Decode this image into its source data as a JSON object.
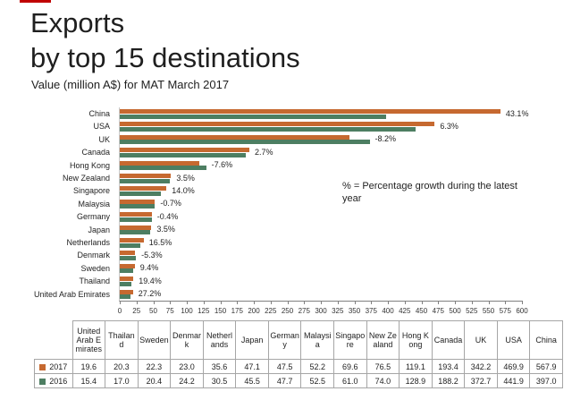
{
  "header": {
    "title_line1": "Exports",
    "title_line2": "by top 15 destinations",
    "subtitle": "Value (million A$) for MAT March 2017"
  },
  "annotation": "% = Percentage growth during the latest year",
  "colors": {
    "bar_2017": "#C66930",
    "bar_2016": "#4D7E62",
    "red_dash": "#C00000"
  },
  "chart_data": {
    "type": "bar",
    "orientation": "horizontal",
    "title": "Exports by top 15 destinations",
    "xlabel": "Value (million A$)",
    "ylabel": "",
    "xlim": [
      0,
      600
    ],
    "grid": false,
    "legend_position": "table-left",
    "categories": [
      "China",
      "USA",
      "UK",
      "Canada",
      "Hong Kong",
      "New Zealand",
      "Singapore",
      "Malaysia",
      "Germany",
      "Japan",
      "Netherlands",
      "Denmark",
      "Sweden",
      "Thailand",
      "United Arab Emirates"
    ],
    "series": [
      {
        "name": "2017",
        "color": "#C66930",
        "values": [
          567.9,
          469.9,
          342.2,
          193.4,
          119.1,
          76.5,
          69.6,
          52.2,
          47.5,
          47.1,
          35.6,
          23.0,
          22.3,
          20.3,
          19.6
        ]
      },
      {
        "name": "2016",
        "color": "#4D7E62",
        "values": [
          397.0,
          441.9,
          372.7,
          188.2,
          128.9,
          74.0,
          61.0,
          52.5,
          47.7,
          45.5,
          30.5,
          24.2,
          20.4,
          17.0,
          15.4
        ]
      }
    ],
    "growth_labels": [
      "43.1%",
      "6.3%",
      "-8.2%",
      "2.7%",
      "-7.6%",
      "3.5%",
      "14.0%",
      "-0.7%",
      "-0.4%",
      "3.5%",
      "16.5%",
      "-5.3%",
      "9.4%",
      "19.4%",
      "27.2%"
    ],
    "x_ticks": [
      0,
      25,
      50,
      75,
      100,
      125,
      150,
      175,
      200,
      225,
      250,
      275,
      300,
      325,
      350,
      375,
      400,
      425,
      450,
      475,
      500,
      525,
      550,
      575,
      600
    ]
  },
  "table": {
    "columns": [
      "United Arab Emirates",
      "Thailand",
      "Sweden",
      "Denmark",
      "Netherlands",
      "Japan",
      "Germany",
      "Malaysia",
      "Singapore",
      "New Zealand",
      "Hong Kong",
      "Canada",
      "UK",
      "USA",
      "China"
    ],
    "rows": [
      {
        "label": "2017",
        "swatch": "#C66930",
        "values": [
          "19.6",
          "20.3",
          "22.3",
          "23.0",
          "35.6",
          "47.1",
          "47.5",
          "52.2",
          "69.6",
          "76.5",
          "119.1",
          "193.4",
          "342.2",
          "469.9",
          "567.9"
        ]
      },
      {
        "label": "2016",
        "swatch": "#4D7E62",
        "values": [
          "15.4",
          "17.0",
          "20.4",
          "24.2",
          "30.5",
          "45.5",
          "47.7",
          "52.5",
          "61.0",
          "74.0",
          "128.9",
          "188.2",
          "372.7",
          "441.9",
          "397.0"
        ]
      }
    ]
  }
}
